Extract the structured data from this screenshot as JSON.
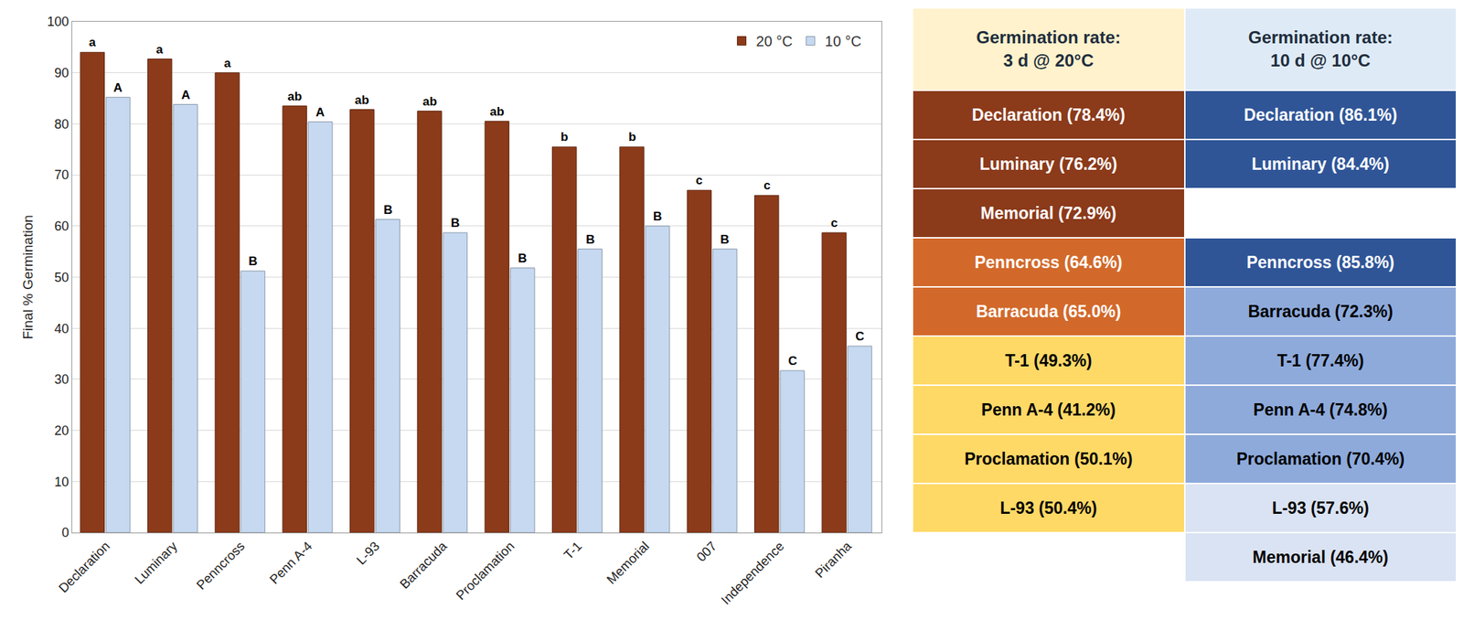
{
  "chart_data": {
    "type": "bar",
    "categories": [
      "Declaration",
      "Luminary",
      "Penncross",
      "Penn A-4",
      "L-93",
      "Barracuda",
      "Proclamation",
      "T-1",
      "Memorial",
      "007",
      "Independence",
      "Piranha"
    ],
    "y_label": "Final % Germination",
    "ylim": [
      0,
      100
    ],
    "yticks": [
      0,
      10,
      20,
      30,
      40,
      50,
      60,
      70,
      80,
      90,
      100
    ],
    "grid": true,
    "legend": "top right",
    "series": [
      {
        "name": "20 °C",
        "color": "#8b3a1a",
        "values": [
          94,
          92.7,
          90,
          83.5,
          82.8,
          82.5,
          80.5,
          75.5,
          75.5,
          67,
          66,
          58.7
        ],
        "annotations": [
          "a",
          "a",
          "a",
          "ab",
          "ab",
          "ab",
          "ab",
          "b",
          "b",
          "c",
          "c",
          "c"
        ]
      },
      {
        "name": "10 °C",
        "color": "#c6d9f1",
        "values": [
          85.2,
          83.8,
          51.2,
          80.4,
          61.3,
          58.7,
          51.8,
          55.5,
          60,
          55.5,
          31.7,
          36.5
        ],
        "annotations": [
          "A",
          "A",
          "B",
          "A",
          "B",
          "B",
          "B",
          "B",
          "B",
          "B",
          "C",
          "C"
        ]
      }
    ]
  },
  "table": {
    "header": [
      {
        "lines": [
          "Germination rate:",
          "3 d @ 20°C"
        ],
        "color": "#fff2cc"
      },
      {
        "lines": [
          "Germination rate:",
          "10 d @ 10°C"
        ],
        "color": "#deebf7"
      }
    ],
    "rows": [
      [
        {
          "text": "Declaration (78.4%)",
          "color": "#8b3a1a"
        },
        {
          "text": "Declaration (86.1%)",
          "color": "#2f5597"
        }
      ],
      [
        {
          "text": "Luminary (76.2%)",
          "color": "#8b3a1a"
        },
        {
          "text": "Luminary (84.4%)",
          "color": "#2f5597"
        }
      ],
      [
        {
          "text": "Memorial (72.9%)",
          "color": "#8b3a1a"
        },
        null
      ],
      [
        {
          "text": "Penncross (64.6%)",
          "color": "#d2692a"
        },
        {
          "text": "Penncross (85.8%)",
          "color": "#2f5597"
        }
      ],
      [
        {
          "text": "Barracuda (65.0%)",
          "color": "#d2692a"
        },
        {
          "text": "Barracuda (72.3%)",
          "color": "#8eaadb"
        }
      ],
      [
        {
          "text": "T-1 (49.3%)",
          "color": "#ffd966"
        },
        {
          "text": "T-1 (77.4%)",
          "color": "#8eaadb"
        }
      ],
      [
        {
          "text": "Penn A-4 (41.2%)",
          "color": "#ffd966"
        },
        {
          "text": "Penn A-4 (74.8%)",
          "color": "#8eaadb"
        }
      ],
      [
        {
          "text": "Proclamation (50.1%)",
          "color": "#ffd966"
        },
        {
          "text": "Proclamation (70.4%)",
          "color": "#8eaadb"
        }
      ],
      [
        {
          "text": "L-93 (50.4%)",
          "color": "#ffd966"
        },
        {
          "text": "L-93 (57.6%)",
          "color": "#dae3f3"
        }
      ],
      [
        null,
        {
          "text": "Memorial (46.4%)",
          "color": "#dae3f3"
        }
      ]
    ]
  }
}
